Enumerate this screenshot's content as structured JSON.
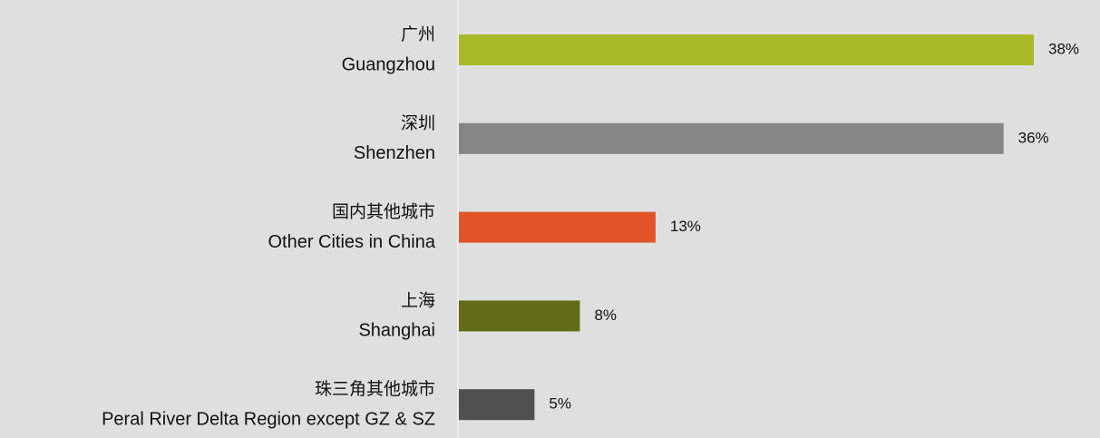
{
  "chart_data": {
    "type": "bar",
    "orientation": "horizontal",
    "categories": [
      [
        "广州",
        "Guangzhou"
      ],
      [
        "深圳",
        "Shenzhen"
      ],
      [
        "国内其他城市",
        "Other Cities in China"
      ],
      [
        "上海",
        "Shanghai"
      ],
      [
        "珠三角其他城市",
        "Peral River Delta Region except GZ & SZ"
      ]
    ],
    "values": [
      38,
      36,
      13,
      8,
      5
    ],
    "value_labels": [
      "38%",
      "36%",
      "13%",
      "8%",
      "5%"
    ],
    "colors": [
      "#a8b92a",
      "#858585",
      "#e05427",
      "#636b17",
      "#505050"
    ]
  }
}
